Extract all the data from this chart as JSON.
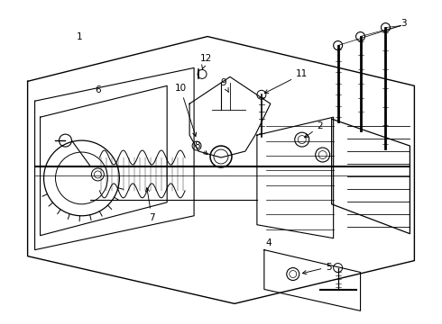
{
  "bg_color": "#ffffff",
  "lc": "#000000",
  "fig_width": 4.9,
  "fig_height": 3.6,
  "dpi": 100,
  "fs": 7.5
}
